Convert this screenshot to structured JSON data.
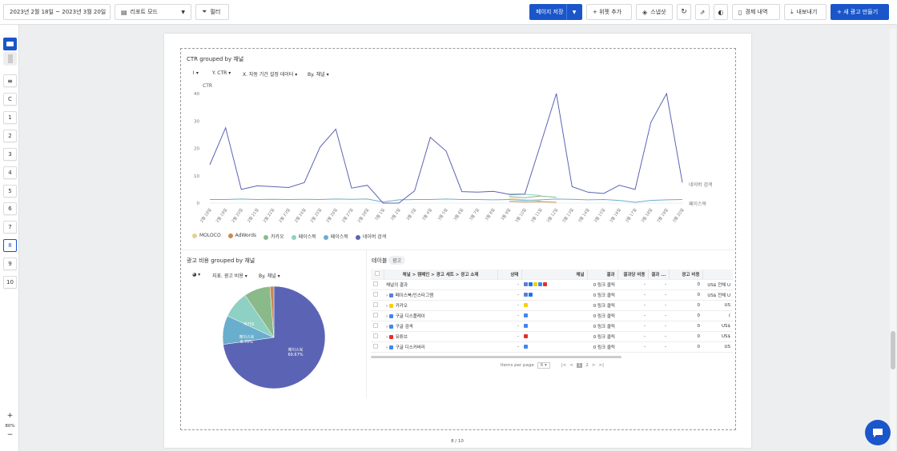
{
  "toolbar": {
    "date_range": "2023년 2월 18일 ~ 2023년 3월 20일",
    "report_mode": "리포트 모드",
    "filter": "필터",
    "save_page": "페이지 저장",
    "add_widget": "+ 위젯 추가",
    "snapshot": "스냅샷",
    "alert_history": "경제 내역",
    "export": "내보내기",
    "new_ad": "+ 새 광고 만들기"
  },
  "sidebar": {
    "pages": [
      "C",
      "1",
      "2",
      "3",
      "4",
      "5",
      "6",
      "7",
      "8",
      "9",
      "10"
    ],
    "active_page": "8",
    "zoom": "80%",
    "zoom_in": "+",
    "zoom_out": "−"
  },
  "line_widget": {
    "title": "CTR grouped by 채널",
    "y_control": "Y. CTR",
    "x_control": "X. 자동 기간 설정 데이터",
    "by_control": "By. 채널",
    "ylabel": "CTR",
    "end_label_1": "네이버 검색",
    "end_label_2": "페이스북"
  },
  "chart_data": [
    {
      "type": "line",
      "title": "CTR grouped by 채널",
      "ylabel": "CTR",
      "ylim": [
        0,
        40
      ],
      "yticks": [
        0,
        10,
        20,
        30,
        40
      ],
      "x": [
        "2월 18일",
        "2월 19일",
        "2월 20일",
        "2월 21일",
        "2월 22일",
        "2월 23일",
        "2월 24일",
        "2월 25일",
        "2월 26일",
        "2월 27일",
        "2월 28일",
        "3월 1일",
        "3월 2일",
        "3월 3일",
        "3월 4일",
        "3월 5일",
        "3월 6일",
        "3월 7일",
        "3월 8일",
        "3월 9일",
        "3월 10일",
        "3월 11일",
        "3월 12일",
        "3월 13일",
        "3월 14일",
        "3월 15일",
        "3월 16일",
        "3월 17일",
        "3월 18일",
        "3월 19일",
        "3월 20일"
      ],
      "series": [
        {
          "name": "MOLOCO",
          "color": "#e7cf92",
          "values": [
            null,
            null,
            null,
            null,
            null,
            null,
            null,
            null,
            null,
            null,
            null,
            null,
            null,
            null,
            null,
            null,
            null,
            null,
            null,
            1.8,
            1.2,
            0.8,
            null,
            null,
            null,
            null,
            null,
            null,
            null,
            null,
            null
          ]
        },
        {
          "name": "AdWords",
          "color": "#c98a55",
          "values": [
            null,
            null,
            null,
            null,
            null,
            null,
            null,
            null,
            null,
            null,
            null,
            null,
            null,
            null,
            null,
            null,
            null,
            null,
            null,
            0.6,
            0.4,
            0.5,
            0.3,
            null,
            null,
            null,
            null,
            null,
            null,
            null,
            null
          ]
        },
        {
          "name": "카카오",
          "color": "#8ab98a",
          "values": [
            null,
            null,
            null,
            null,
            null,
            null,
            null,
            null,
            null,
            null,
            null,
            null,
            null,
            null,
            null,
            null,
            null,
            null,
            null,
            2.4,
            2.0,
            2.6,
            2.1,
            null,
            null,
            null,
            null,
            null,
            null,
            null,
            null
          ]
        },
        {
          "name": "페이스북",
          "color": "#8fd0c4",
          "values": [
            null,
            null,
            null,
            null,
            null,
            null,
            null,
            null,
            null,
            null,
            null,
            null,
            null,
            null,
            null,
            null,
            null,
            null,
            null,
            3.0,
            3.2,
            2.8,
            null,
            null,
            null,
            null,
            null,
            null,
            null,
            null,
            null
          ]
        },
        {
          "name": "페이스북",
          "color": "#6aaecd",
          "values": [
            1.3,
            1.3,
            1.5,
            1.3,
            1.4,
            1.3,
            1.4,
            1.3,
            1.5,
            1.4,
            1.5,
            0.4,
            1.2,
            1.3,
            1.3,
            1.5,
            1.3,
            1.3,
            1.2,
            1.3,
            1.0,
            1.2,
            1.5,
            1.4,
            1.2,
            1.3,
            1.0,
            0.3,
            1.0,
            1.2,
            1.3
          ]
        },
        {
          "name": "네이버 검색",
          "color": "#5b64b4",
          "values": [
            14,
            27.5,
            5,
            6.3,
            6,
            5.7,
            7.5,
            20.5,
            27,
            5.5,
            6.5,
            0,
            0,
            4.5,
            24,
            19,
            4.2,
            4,
            4.3,
            3.2,
            3.3,
            21.5,
            40,
            6,
            4,
            3.5,
            6.5,
            5,
            29.5,
            40,
            7.5
          ]
        }
      ],
      "legend": "bottom-left"
    },
    {
      "type": "pie",
      "title": "광고 비용 grouped by 채널",
      "labels": [
        "페이스북",
        "페이스북",
        "카카오",
        "AdWords",
        "MOLOCO"
      ],
      "values": [
        69.67,
        8.7,
        8.2,
        7.9,
        1.2
      ],
      "colors": [
        "#5b64b4",
        "#6aaecd",
        "#8fd0c4",
        "#8ab98a",
        "#c98a55"
      ]
    }
  ],
  "pie_widget": {
    "title": "광고 비용 grouped by 채널",
    "metric_control": "지표. 광고 비용",
    "by_control": "By. 채널",
    "label_main": "페이스북",
    "label_main_pct": "69.67%",
    "label_2": "페이스북",
    "label_2_pct": "8.70%",
    "label_3": "카카오"
  },
  "table_widget": {
    "title": "테이블",
    "tag": "광고",
    "columns": [
      "채널 > 캠페인 > 광고 세트 > 광고 소재",
      "상태",
      "채널",
      "결과",
      "결과당 비용",
      "결과 ...",
      "광고 비용"
    ],
    "rows": [
      {
        "name": "채널의 결과",
        "status": "-",
        "result": "0 링크 클릭",
        "cpr": "-",
        "res2": "-",
        "cost": "0",
        "extra": "US$ 전체 U"
      },
      {
        "name": "페이스북/인스타그램",
        "status": "-",
        "result": "0 링크 클릭",
        "cpr": "-",
        "res2": "-",
        "cost": "0",
        "extra": "US$ 전체 U"
      },
      {
        "name": "카카오",
        "status": "-",
        "result": "0 링크 클릭",
        "cpr": "-",
        "res2": "-",
        "cost": "0",
        "extra": "US"
      },
      {
        "name": "구글 디스플레이",
        "status": "-",
        "result": "0 링크 클릭",
        "cpr": "-",
        "res2": "-",
        "cost": "0",
        "extra": "("
      },
      {
        "name": "구글 검색",
        "status": "-",
        "result": "0 링크 클릭",
        "cpr": "-",
        "res2": "-",
        "cost": "0",
        "extra": "US$"
      },
      {
        "name": "유튜브",
        "status": "-",
        "result": "0 링크 클릭",
        "cpr": "-",
        "res2": "-",
        "cost": "0",
        "extra": "US$"
      },
      {
        "name": "구글 디스커버리",
        "status": "-",
        "result": "0 링크 클릭",
        "cpr": "-",
        "res2": "-",
        "cost": "0",
        "extra": "US"
      }
    ],
    "items_per_page_label": "Items per page",
    "items_per_page": "6",
    "pages": [
      "1",
      "2"
    ],
    "current_page": "1"
  },
  "page_indicator": "8 / 10"
}
